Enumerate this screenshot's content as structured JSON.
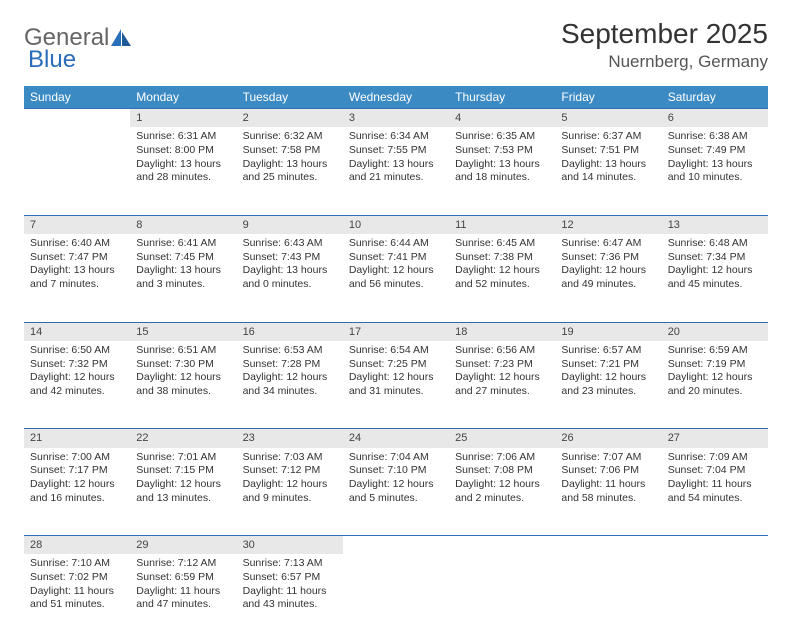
{
  "logo": {
    "text1": "General",
    "text2": "Blue"
  },
  "title": "September 2025",
  "location": "Nuernberg, Germany",
  "colors": {
    "header_bg": "#3b8ac4",
    "header_text": "#ffffff",
    "daynum_bg": "#e8e8e8",
    "daynum_border": "#2a6db8",
    "body_text": "#333333",
    "logo_accent": "#2a6db8"
  },
  "weekdays": [
    "Sunday",
    "Monday",
    "Tuesday",
    "Wednesday",
    "Thursday",
    "Friday",
    "Saturday"
  ],
  "weeks": [
    {
      "nums": [
        "",
        "1",
        "2",
        "3",
        "4",
        "5",
        "6"
      ],
      "cells": [
        null,
        {
          "sr": "Sunrise: 6:31 AM",
          "ss": "Sunset: 8:00 PM",
          "d1": "Daylight: 13 hours",
          "d2": "and 28 minutes."
        },
        {
          "sr": "Sunrise: 6:32 AM",
          "ss": "Sunset: 7:58 PM",
          "d1": "Daylight: 13 hours",
          "d2": "and 25 minutes."
        },
        {
          "sr": "Sunrise: 6:34 AM",
          "ss": "Sunset: 7:55 PM",
          "d1": "Daylight: 13 hours",
          "d2": "and 21 minutes."
        },
        {
          "sr": "Sunrise: 6:35 AM",
          "ss": "Sunset: 7:53 PM",
          "d1": "Daylight: 13 hours",
          "d2": "and 18 minutes."
        },
        {
          "sr": "Sunrise: 6:37 AM",
          "ss": "Sunset: 7:51 PM",
          "d1": "Daylight: 13 hours",
          "d2": "and 14 minutes."
        },
        {
          "sr": "Sunrise: 6:38 AM",
          "ss": "Sunset: 7:49 PM",
          "d1": "Daylight: 13 hours",
          "d2": "and 10 minutes."
        }
      ]
    },
    {
      "nums": [
        "7",
        "8",
        "9",
        "10",
        "11",
        "12",
        "13"
      ],
      "cells": [
        {
          "sr": "Sunrise: 6:40 AM",
          "ss": "Sunset: 7:47 PM",
          "d1": "Daylight: 13 hours",
          "d2": "and 7 minutes."
        },
        {
          "sr": "Sunrise: 6:41 AM",
          "ss": "Sunset: 7:45 PM",
          "d1": "Daylight: 13 hours",
          "d2": "and 3 minutes."
        },
        {
          "sr": "Sunrise: 6:43 AM",
          "ss": "Sunset: 7:43 PM",
          "d1": "Daylight: 13 hours",
          "d2": "and 0 minutes."
        },
        {
          "sr": "Sunrise: 6:44 AM",
          "ss": "Sunset: 7:41 PM",
          "d1": "Daylight: 12 hours",
          "d2": "and 56 minutes."
        },
        {
          "sr": "Sunrise: 6:45 AM",
          "ss": "Sunset: 7:38 PM",
          "d1": "Daylight: 12 hours",
          "d2": "and 52 minutes."
        },
        {
          "sr": "Sunrise: 6:47 AM",
          "ss": "Sunset: 7:36 PM",
          "d1": "Daylight: 12 hours",
          "d2": "and 49 minutes."
        },
        {
          "sr": "Sunrise: 6:48 AM",
          "ss": "Sunset: 7:34 PM",
          "d1": "Daylight: 12 hours",
          "d2": "and 45 minutes."
        }
      ]
    },
    {
      "nums": [
        "14",
        "15",
        "16",
        "17",
        "18",
        "19",
        "20"
      ],
      "cells": [
        {
          "sr": "Sunrise: 6:50 AM",
          "ss": "Sunset: 7:32 PM",
          "d1": "Daylight: 12 hours",
          "d2": "and 42 minutes."
        },
        {
          "sr": "Sunrise: 6:51 AM",
          "ss": "Sunset: 7:30 PM",
          "d1": "Daylight: 12 hours",
          "d2": "and 38 minutes."
        },
        {
          "sr": "Sunrise: 6:53 AM",
          "ss": "Sunset: 7:28 PM",
          "d1": "Daylight: 12 hours",
          "d2": "and 34 minutes."
        },
        {
          "sr": "Sunrise: 6:54 AM",
          "ss": "Sunset: 7:25 PM",
          "d1": "Daylight: 12 hours",
          "d2": "and 31 minutes."
        },
        {
          "sr": "Sunrise: 6:56 AM",
          "ss": "Sunset: 7:23 PM",
          "d1": "Daylight: 12 hours",
          "d2": "and 27 minutes."
        },
        {
          "sr": "Sunrise: 6:57 AM",
          "ss": "Sunset: 7:21 PM",
          "d1": "Daylight: 12 hours",
          "d2": "and 23 minutes."
        },
        {
          "sr": "Sunrise: 6:59 AM",
          "ss": "Sunset: 7:19 PM",
          "d1": "Daylight: 12 hours",
          "d2": "and 20 minutes."
        }
      ]
    },
    {
      "nums": [
        "21",
        "22",
        "23",
        "24",
        "25",
        "26",
        "27"
      ],
      "cells": [
        {
          "sr": "Sunrise: 7:00 AM",
          "ss": "Sunset: 7:17 PM",
          "d1": "Daylight: 12 hours",
          "d2": "and 16 minutes."
        },
        {
          "sr": "Sunrise: 7:01 AM",
          "ss": "Sunset: 7:15 PM",
          "d1": "Daylight: 12 hours",
          "d2": "and 13 minutes."
        },
        {
          "sr": "Sunrise: 7:03 AM",
          "ss": "Sunset: 7:12 PM",
          "d1": "Daylight: 12 hours",
          "d2": "and 9 minutes."
        },
        {
          "sr": "Sunrise: 7:04 AM",
          "ss": "Sunset: 7:10 PM",
          "d1": "Daylight: 12 hours",
          "d2": "and 5 minutes."
        },
        {
          "sr": "Sunrise: 7:06 AM",
          "ss": "Sunset: 7:08 PM",
          "d1": "Daylight: 12 hours",
          "d2": "and 2 minutes."
        },
        {
          "sr": "Sunrise: 7:07 AM",
          "ss": "Sunset: 7:06 PM",
          "d1": "Daylight: 11 hours",
          "d2": "and 58 minutes."
        },
        {
          "sr": "Sunrise: 7:09 AM",
          "ss": "Sunset: 7:04 PM",
          "d1": "Daylight: 11 hours",
          "d2": "and 54 minutes."
        }
      ]
    },
    {
      "nums": [
        "28",
        "29",
        "30",
        "",
        "",
        "",
        ""
      ],
      "cells": [
        {
          "sr": "Sunrise: 7:10 AM",
          "ss": "Sunset: 7:02 PM",
          "d1": "Daylight: 11 hours",
          "d2": "and 51 minutes."
        },
        {
          "sr": "Sunrise: 7:12 AM",
          "ss": "Sunset: 6:59 PM",
          "d1": "Daylight: 11 hours",
          "d2": "and 47 minutes."
        },
        {
          "sr": "Sunrise: 7:13 AM",
          "ss": "Sunset: 6:57 PM",
          "d1": "Daylight: 11 hours",
          "d2": "and 43 minutes."
        },
        null,
        null,
        null,
        null
      ]
    }
  ]
}
